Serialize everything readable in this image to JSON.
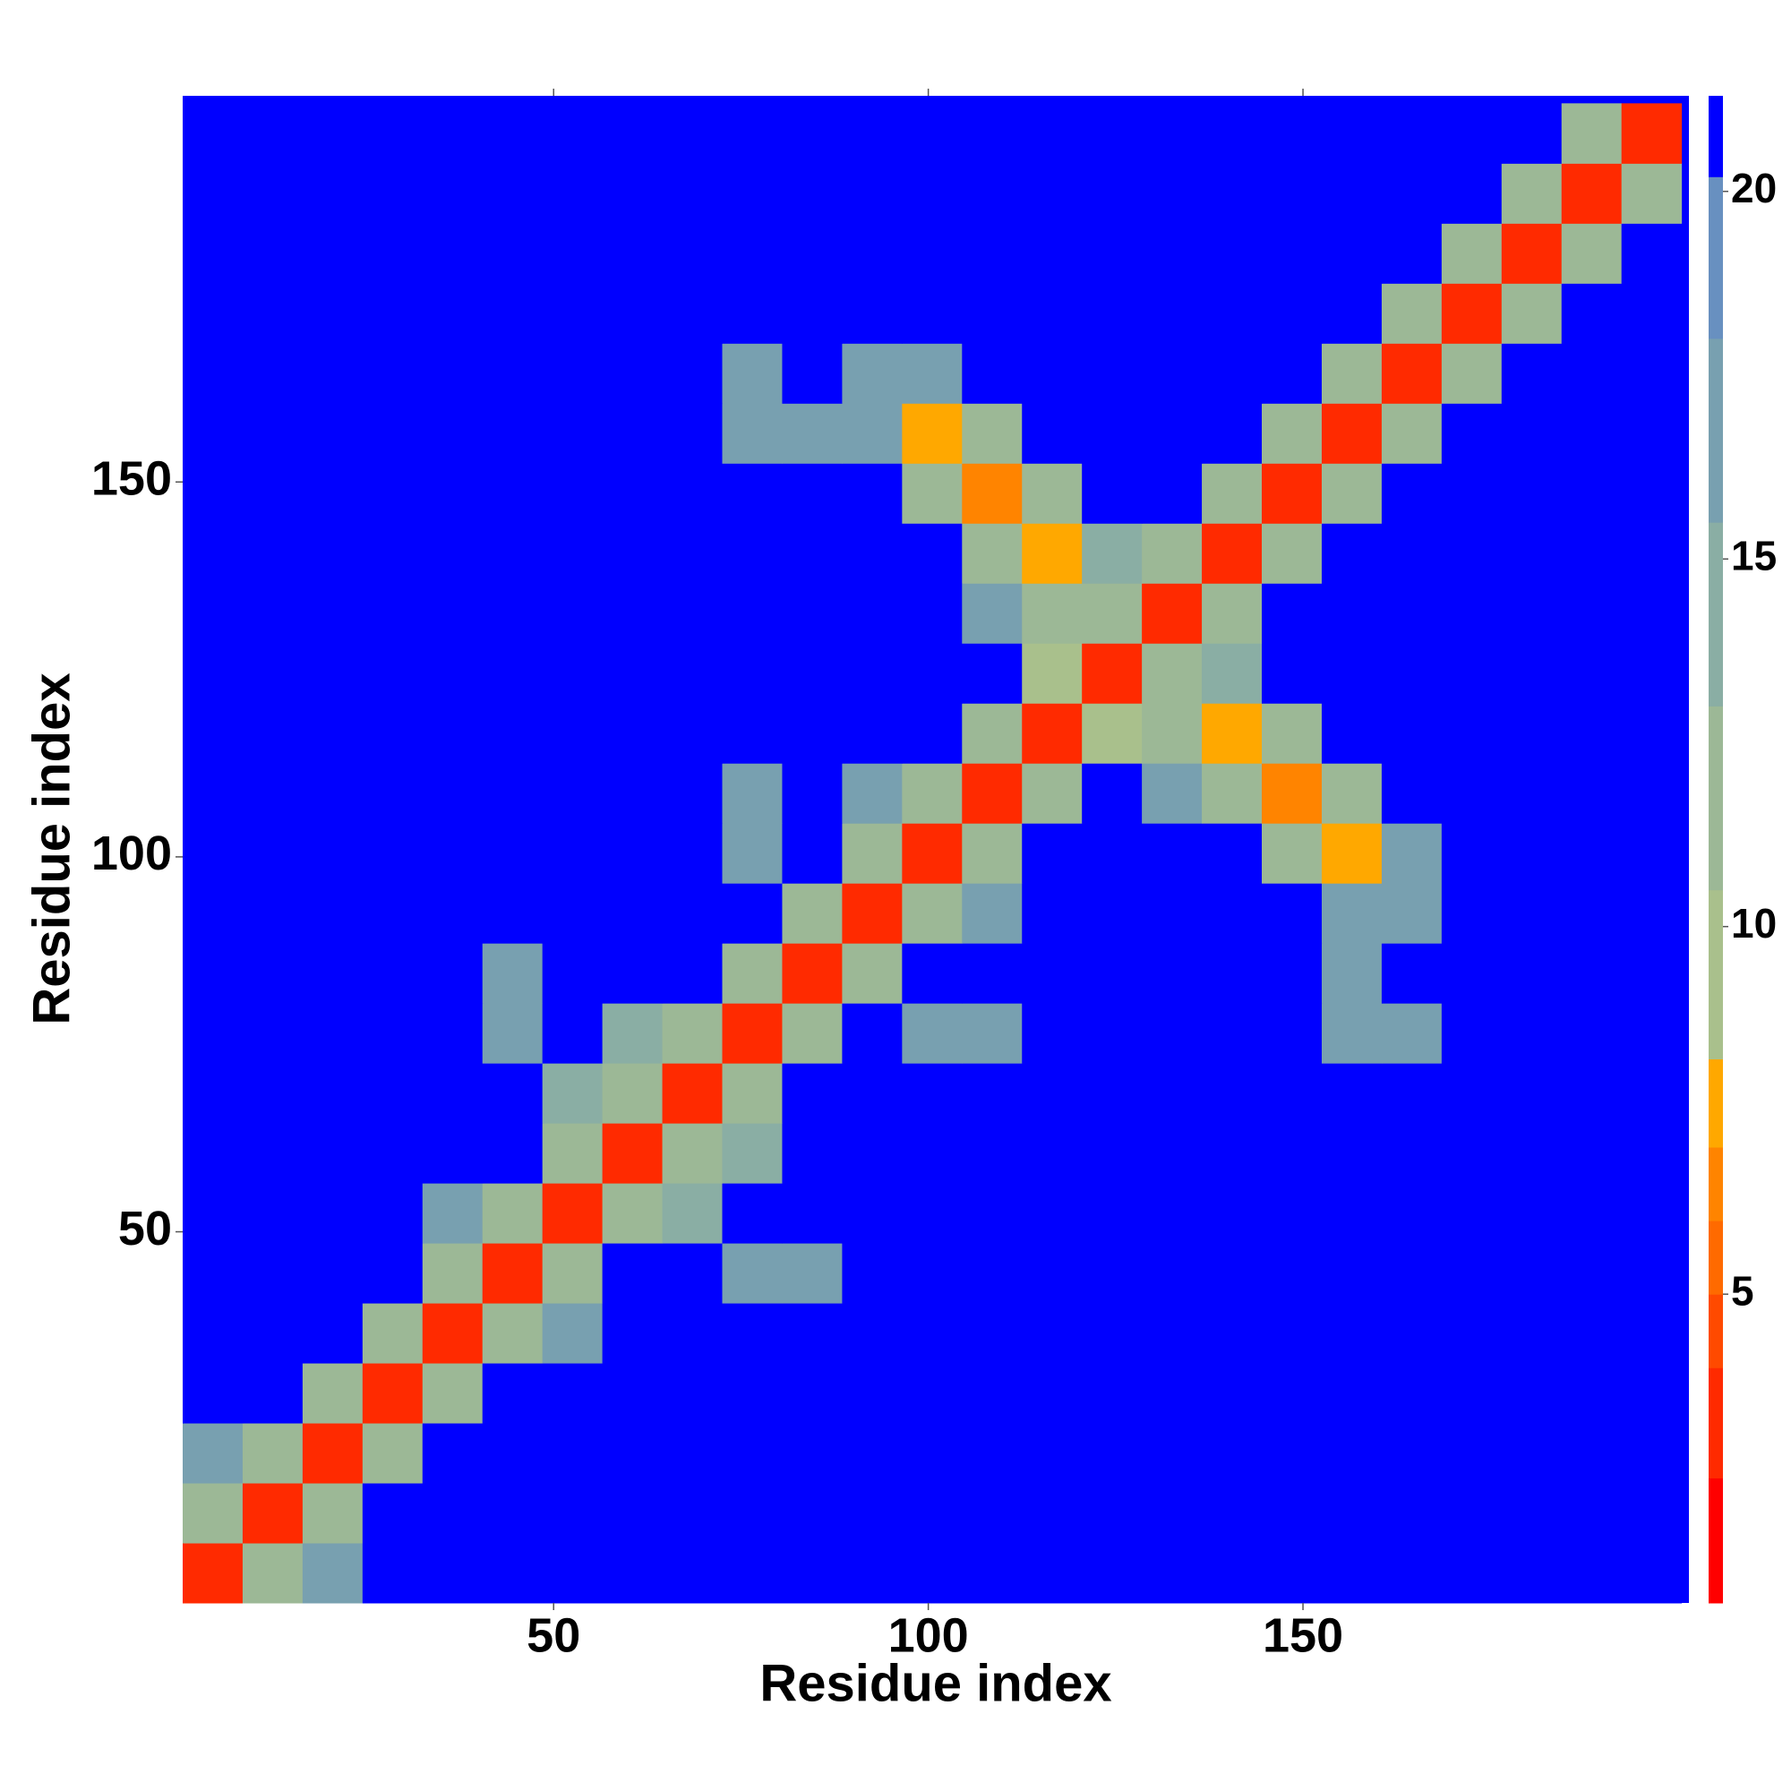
{
  "chart_data": {
    "type": "heatmap",
    "xlabel": "Residue index",
    "ylabel": "Residue index",
    "x": [
      4.5,
      12.5,
      20.5,
      28.5,
      36.5,
      44.5,
      52.5,
      60.5,
      68.5,
      76.5,
      84.5,
      92.5,
      100.5,
      108.5,
      116.5,
      124.5,
      132.5,
      140.5,
      148.5,
      156.5,
      164.5,
      172.5,
      180.5,
      188.5,
      196.5
    ],
    "y": [
      4.5,
      12.5,
      20.5,
      28.5,
      36.5,
      44.5,
      52.5,
      60.5,
      68.5,
      76.5,
      84.5,
      92.5,
      100.5,
      108.5,
      116.5,
      124.5,
      132.5,
      140.5,
      148.5,
      156.5,
      164.5,
      172.5,
      180.5,
      188.5,
      196.5
    ],
    "values": [
      [
        3,
        12,
        16,
        21,
        21,
        21,
        21,
        21,
        21,
        21,
        21,
        21,
        21,
        21,
        21,
        21,
        21,
        21,
        21,
        21,
        21,
        21,
        21,
        21,
        21
      ],
      [
        12,
        3,
        12,
        21,
        21,
        21,
        21,
        21,
        21,
        21,
        21,
        21,
        21,
        21,
        21,
        21,
        21,
        21,
        21,
        21,
        21,
        21,
        21,
        21,
        21
      ],
      [
        16,
        12,
        3,
        12,
        21,
        21,
        21,
        21,
        21,
        21,
        21,
        21,
        21,
        21,
        21,
        21,
        21,
        21,
        21,
        21,
        21,
        21,
        21,
        21,
        21
      ],
      [
        21,
        21,
        12,
        3,
        12,
        21,
        21,
        21,
        21,
        21,
        21,
        21,
        21,
        21,
        21,
        21,
        21,
        21,
        21,
        21,
        21,
        21,
        21,
        21,
        21
      ],
      [
        21,
        21,
        21,
        12,
        3,
        12,
        16,
        21,
        21,
        21,
        21,
        21,
        21,
        21,
        21,
        21,
        21,
        21,
        21,
        21,
        21,
        21,
        21,
        21,
        21
      ],
      [
        21,
        21,
        21,
        21,
        12,
        3,
        12,
        21,
        21,
        17,
        18,
        21,
        21,
        21,
        21,
        21,
        21,
        21,
        21,
        21,
        21,
        21,
        21,
        21,
        21
      ],
      [
        21,
        21,
        21,
        21,
        16,
        12,
        3,
        12,
        15,
        21,
        21,
        21,
        21,
        21,
        21,
        21,
        21,
        21,
        21,
        21,
        21,
        21,
        21,
        21,
        21
      ],
      [
        21,
        21,
        21,
        21,
        21,
        21,
        12,
        3,
        12,
        15,
        21,
        21,
        21,
        21,
        21,
        21,
        21,
        21,
        21,
        21,
        21,
        21,
        21,
        21,
        21
      ],
      [
        21,
        21,
        21,
        21,
        21,
        21,
        15,
        12,
        3,
        12,
        21,
        21,
        21,
        21,
        21,
        21,
        21,
        21,
        21,
        21,
        21,
        21,
        21,
        21,
        21
      ],
      [
        21,
        21,
        21,
        21,
        21,
        17,
        21,
        15,
        12,
        3,
        12,
        21,
        16,
        17,
        21,
        21,
        21,
        21,
        21,
        17,
        18,
        21,
        21,
        21,
        21
      ],
      [
        21,
        21,
        21,
        21,
        21,
        18,
        21,
        21,
        21,
        12,
        3,
        12,
        21,
        21,
        21,
        21,
        21,
        21,
        21,
        18,
        21,
        21,
        21,
        21,
        21
      ],
      [
        21,
        21,
        21,
        21,
        21,
        21,
        21,
        21,
        21,
        21,
        12,
        3,
        12,
        18,
        21,
        21,
        21,
        21,
        21,
        16,
        18,
        21,
        21,
        21,
        21
      ],
      [
        21,
        21,
        21,
        21,
        21,
        21,
        21,
        21,
        21,
        16,
        21,
        12,
        3,
        12,
        21,
        21,
        21,
        21,
        13,
        8,
        17,
        21,
        21,
        21,
        21
      ],
      [
        21,
        21,
        21,
        21,
        21,
        21,
        21,
        21,
        21,
        17,
        21,
        18,
        12,
        3,
        12,
        21,
        16,
        12,
        7,
        12,
        21,
        21,
        21,
        21,
        21
      ],
      [
        21,
        21,
        21,
        21,
        21,
        21,
        21,
        21,
        21,
        21,
        21,
        21,
        21,
        12,
        3,
        10,
        11,
        8,
        12,
        21,
        21,
        21,
        21,
        21,
        21
      ],
      [
        21,
        21,
        21,
        21,
        21,
        21,
        21,
        21,
        21,
        21,
        21,
        21,
        21,
        21,
        10,
        3,
        12,
        15,
        21,
        21,
        21,
        21,
        21,
        21,
        21
      ],
      [
        21,
        21,
        21,
        21,
        21,
        21,
        21,
        21,
        21,
        21,
        21,
        21,
        21,
        16,
        11,
        12,
        3,
        12,
        21,
        21,
        21,
        21,
        21,
        21,
        21
      ],
      [
        21,
        21,
        21,
        21,
        21,
        21,
        21,
        21,
        21,
        21,
        21,
        21,
        21,
        12,
        8,
        15,
        12,
        3,
        12,
        21,
        21,
        21,
        21,
        21,
        21
      ],
      [
        21,
        21,
        21,
        21,
        21,
        21,
        21,
        21,
        21,
        21,
        21,
        21,
        13,
        7,
        12,
        21,
        21,
        12,
        3,
        12,
        21,
        21,
        21,
        21,
        21
      ],
      [
        21,
        21,
        21,
        21,
        21,
        21,
        21,
        21,
        21,
        17,
        18,
        16,
        8,
        12,
        21,
        21,
        21,
        21,
        12,
        3,
        12,
        21,
        21,
        21,
        21
      ],
      [
        21,
        21,
        21,
        21,
        21,
        21,
        21,
        21,
        21,
        18,
        21,
        18,
        17,
        21,
        21,
        21,
        21,
        21,
        21,
        12,
        3,
        12,
        21,
        21,
        21
      ],
      [
        21,
        21,
        21,
        21,
        21,
        21,
        21,
        21,
        21,
        21,
        21,
        21,
        21,
        21,
        21,
        21,
        21,
        21,
        21,
        21,
        12,
        3,
        12,
        21,
        21
      ],
      [
        21,
        21,
        21,
        21,
        21,
        21,
        21,
        21,
        21,
        21,
        21,
        21,
        21,
        21,
        21,
        21,
        21,
        21,
        21,
        21,
        21,
        12,
        3,
        12,
        21
      ],
      [
        21,
        21,
        21,
        21,
        21,
        21,
        21,
        21,
        21,
        21,
        21,
        21,
        21,
        21,
        21,
        21,
        21,
        21,
        21,
        21,
        21,
        21,
        12,
        3,
        12
      ],
      [
        21,
        21,
        21,
        21,
        21,
        21,
        21,
        21,
        21,
        21,
        21,
        21,
        21,
        21,
        21,
        21,
        21,
        21,
        21,
        21,
        21,
        21,
        21,
        12,
        3
      ]
    ],
    "xlim": [
      0.5,
      201.5
    ],
    "ylim": [
      0.5,
      201.5
    ],
    "xticks": [
      50,
      100,
      150
    ],
    "yticks": [
      50,
      100,
      150
    ],
    "colorbar": {
      "lim": [
        0.8,
        21.3
      ],
      "ticks": [
        5,
        10,
        15,
        20
      ],
      "bands": [
        {
          "from": 0.8,
          "to": 2.5,
          "color": "#ff0000"
        },
        {
          "from": 2.5,
          "to": 4,
          "color": "#ff2a00"
        },
        {
          "from": 4,
          "to": 5,
          "color": "#ff4a00"
        },
        {
          "from": 5,
          "to": 6,
          "color": "#ff6a00"
        },
        {
          "from": 6,
          "to": 7,
          "color": "#ff8400"
        },
        {
          "from": 7,
          "to": 8.2,
          "color": "#ffa800"
        },
        {
          "from": 8.2,
          "to": 10.5,
          "color": "#a9c08c"
        },
        {
          "from": 10.5,
          "to": 13,
          "color": "#9cb896"
        },
        {
          "from": 13,
          "to": 15.5,
          "color": "#8aaea4"
        },
        {
          "from": 15.5,
          "to": 18,
          "color": "#78a0b0"
        },
        {
          "from": 18,
          "to": 20.2,
          "color": "#6890c0"
        },
        {
          "from": 20.2,
          "to": 21.3,
          "color": "#0000ff"
        }
      ]
    }
  }
}
